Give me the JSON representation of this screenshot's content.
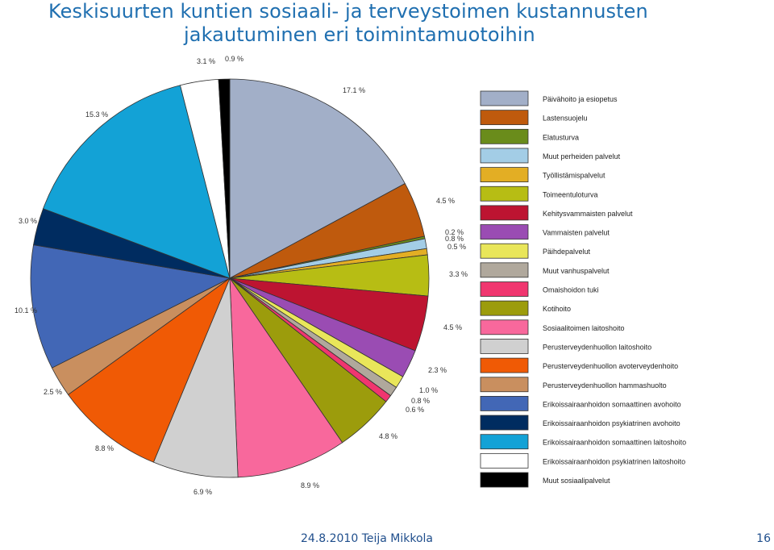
{
  "slide": {
    "title_line1": "Keskisuurten kuntien sosiaali- ja terveystoimen kustannusten",
    "title_line2": "jakautuminen eri toimintamuotoihin",
    "footer_text": "24.8.2010 Teija Mikkola",
    "page_number": "16"
  },
  "chart_data": {
    "type": "pie",
    "title": "",
    "legend_position": "right",
    "categories": [
      "Päivähoito ja esiopetus",
      "Lastensuojelu",
      "Elatusturva",
      "Muut perheiden palvelut",
      "Työllistämispalvelut",
      "Toimeentuloturva",
      "Kehitysvammaisten palvelut",
      "Vammaisten palvelut",
      "Päihdepalvelut",
      "Muut vanhuspalvelut",
      "Omaishoidon tuki",
      "Kotihoito",
      "Sosiaalitoimen laitoshoito",
      "Perusterveydenhuollon laitoshoito",
      "Perusterveydenhuollon avoterveydenhoito",
      "Perusterveydenhuollon hammashuolto",
      "Erikoissairaanhoidon somaattinen avohoito",
      "Erikoissairaanhoidon psykiatrinen avohoito",
      "Erikoissairaanhoidon somaattinen laitoshoito",
      "Erikoissairaanhoidon psykiatrinen laitoshoito",
      "Muut sosiaalipalvelut"
    ],
    "values": [
      17.1,
      4.5,
      0.2,
      0.8,
      0.5,
      3.3,
      4.5,
      2.3,
      1.0,
      0.8,
      0.6,
      4.8,
      8.9,
      6.9,
      8.8,
      2.5,
      10.1,
      3.0,
      15.3,
      3.1,
      0.9
    ],
    "labels": [
      "17.1 %",
      "4.5 %",
      "0.2 %",
      "0.8 %",
      "0.5 %",
      "3.3 %",
      "4.5 %",
      "2.3 %",
      "1.0 %",
      "0.8 %",
      "0.6 %",
      "4.8 %",
      "8.9 %",
      "6.9 %",
      "8.8 %",
      "2.5 %",
      "10.1 %",
      "3.0 %",
      "15.3 %",
      "3.1 %",
      "0.9 %"
    ],
    "colors": [
      "#a2afc8",
      "#bf5a0d",
      "#6a8c1b",
      "#a3cde6",
      "#e3ae24",
      "#b7bd14",
      "#bd1431",
      "#9a4cb3",
      "#e9e65a",
      "#b0a89c",
      "#f0366f",
      "#9c9c0c",
      "#f8689c",
      "#d0d0d0",
      "#f05a05",
      "#c98f5f",
      "#4267b6",
      "#002c60",
      "#13a2d6",
      "#ffffff",
      "#000000"
    ]
  }
}
